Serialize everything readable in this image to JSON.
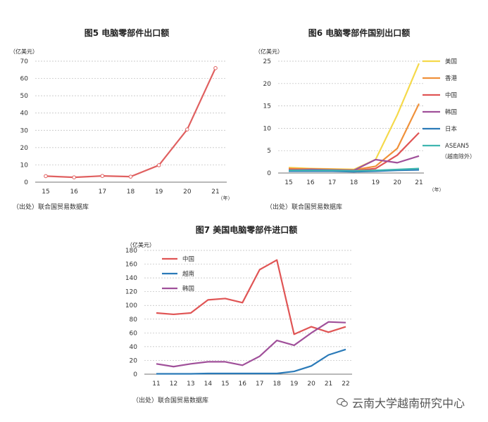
{
  "charts": [
    {
      "title": "图5  电脑零部件出口额",
      "unit": "（亿美元）",
      "source": "（出处）联合国贸易数据库",
      "x_unit": "（年）"
    },
    {
      "title": "图6  电脑零部件国别出口额",
      "unit": "（亿美元）",
      "source": "（出处）联合国贸易数据库",
      "x_unit": "（年）"
    },
    {
      "title": "图7  美国电脑零部件进口额",
      "unit": "（亿美元）",
      "source": "（出处）联合国贸易数据库"
    }
  ],
  "watermark": "云南大学越南研究中心",
  "chart_data": [
    {
      "type": "line",
      "title": "图5  电脑零部件出口额",
      "ylabel": "（亿美元）",
      "xlabel": "（年）",
      "x": [
        "15",
        "16",
        "17",
        "18",
        "19",
        "20",
        "21"
      ],
      "series": [
        {
          "values": [
            3.5,
            2.8,
            3.6,
            3.2,
            9.8,
            30.5,
            66.0
          ],
          "color": "#e06060",
          "markers": true
        }
      ],
      "ylim": [
        0,
        70
      ],
      "yticks": [
        0,
        10,
        20,
        30,
        40,
        50,
        60,
        70
      ],
      "grid": "horizontal-dashed"
    },
    {
      "type": "line",
      "title": "图6  电脑零部件国别出口额",
      "ylabel": "（亿美元）",
      "xlabel": "（年）",
      "x": [
        "15",
        "16",
        "17",
        "18",
        "19",
        "20",
        "21"
      ],
      "series": [
        {
          "name": "美国",
          "values": [
            1.2,
            1.0,
            0.9,
            0.8,
            3.0,
            13.0,
            24.5
          ],
          "color": "#f5d94a"
        },
        {
          "name": "香港",
          "values": [
            1.0,
            0.9,
            0.8,
            0.7,
            1.5,
            5.5,
            15.5
          ],
          "color": "#f0913a"
        },
        {
          "name": "中国",
          "values": [
            0.8,
            0.7,
            0.6,
            0.5,
            1.0,
            4.0,
            9.0
          ],
          "color": "#e05555"
        },
        {
          "name": "韩国",
          "values": [
            0.6,
            0.8,
            0.7,
            0.6,
            3.0,
            2.3,
            3.8
          ],
          "color": "#a0509a"
        },
        {
          "name": "日本",
          "values": [
            0.4,
            0.4,
            0.4,
            0.3,
            0.4,
            0.6,
            0.7
          ],
          "color": "#2a7ab8"
        },
        {
          "name": "ASEAN5",
          "note": "（越南除外）",
          "values": [
            0.6,
            0.6,
            0.6,
            0.5,
            0.6,
            0.8,
            1.0
          ],
          "color": "#3fb6b0"
        }
      ],
      "ylim": [
        0,
        25
      ],
      "yticks": [
        0,
        5,
        10,
        15,
        20,
        25
      ],
      "grid": "horizontal-dashed",
      "legend": "right"
    },
    {
      "type": "line",
      "title": "图7  美国电脑零部件进口额",
      "ylabel": "（亿美元）",
      "x": [
        "11",
        "12",
        "13",
        "14",
        "15",
        "16",
        "17",
        "18",
        "19",
        "20",
        "21",
        "22"
      ],
      "series": [
        {
          "name": "中国",
          "values": [
            89,
            87,
            89,
            108,
            110,
            104,
            152,
            166,
            58,
            69,
            61,
            69
          ],
          "color": "#e05555"
        },
        {
          "name": "越南",
          "values": [
            0.5,
            0.5,
            0.5,
            1,
            1,
            1,
            1,
            1,
            4,
            12,
            28,
            36
          ],
          "color": "#2a7ab8"
        },
        {
          "name": "韩国",
          "values": [
            15,
            11,
            15,
            18,
            18,
            13,
            26,
            49,
            42,
            60,
            76,
            75
          ],
          "color": "#a0509a"
        }
      ],
      "ylim": [
        0,
        180
      ],
      "yticks": [
        0,
        20,
        40,
        60,
        80,
        100,
        120,
        140,
        160,
        180
      ],
      "grid": "horizontal-dashed",
      "legend": "top-left"
    }
  ]
}
